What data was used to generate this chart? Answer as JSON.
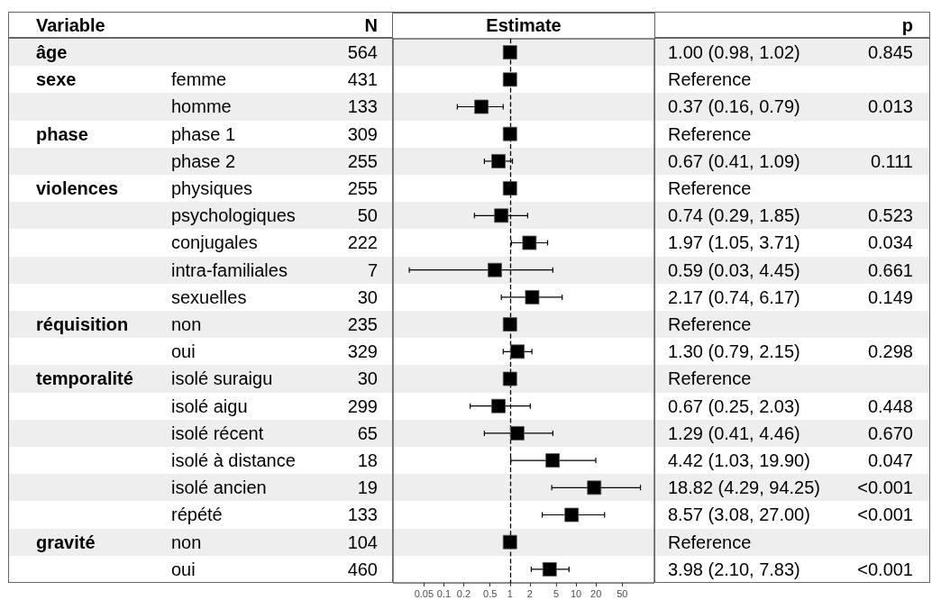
{
  "chart_data": [
    {
      "type": "other",
      "categories": [
        "Variable",
        null,
        "N"
      ],
      "cell_labels": [
        [
          "âge",
          null,
          "564"
        ],
        [
          "sexe",
          "femme",
          "431"
        ],
        [
          null,
          "homme",
          "133"
        ],
        [
          "phase",
          "phase 1",
          "309"
        ],
        [
          null,
          "phase 2",
          "255"
        ],
        [
          "violences",
          "physiques",
          "255"
        ],
        [
          null,
          "psychologiques",
          "50"
        ],
        [
          null,
          "conjugales",
          "222"
        ],
        [
          null,
          "intra-familiales",
          "7"
        ],
        [
          null,
          "sexuelles",
          "30"
        ],
        [
          "réquisition",
          "non",
          "235"
        ],
        [
          null,
          "oui",
          "329"
        ],
        [
          "temporalité",
          "isolé suraigu",
          "30"
        ],
        [
          null,
          "isolé aigu",
          "299"
        ],
        [
          null,
          "isolé récent",
          "65"
        ],
        [
          null,
          "isolé à distance",
          "18"
        ],
        [
          null,
          "isolé ancien",
          "19"
        ],
        [
          null,
          "répété",
          "133"
        ],
        [
          "gravité",
          "non",
          "104"
        ],
        [
          null,
          "oui",
          "460"
        ]
      ]
    },
    {
      "type": "scatter",
      "title": "Estimate",
      "orientation": "horizontal",
      "categories": [
        null,
        null,
        null,
        null,
        null,
        null,
        null,
        null,
        null,
        null,
        null,
        null,
        null,
        null,
        null,
        null,
        null,
        null,
        null,
        null
      ],
      "values": [
        1,
        1,
        0.37,
        1,
        0.67,
        1,
        0.74,
        1.97,
        0.59,
        2.17,
        1,
        1.3,
        1,
        0.67,
        1.29,
        4.42,
        18.82,
        8.57,
        1,
        3.98
      ],
      "errors": [
        [
          0.98,
          1.02
        ],
        null,
        [
          0.16,
          0.79
        ],
        null,
        [
          0.41,
          1.09
        ],
        null,
        [
          0.29,
          1.85
        ],
        [
          1.05,
          3.71
        ],
        [
          0.03,
          4.45
        ],
        [
          0.74,
          6.17
        ],
        null,
        [
          0.79,
          2.15
        ],
        null,
        [
          0.25,
          2.03
        ],
        [
          0.41,
          4.46
        ],
        [
          1.03,
          19.9
        ],
        [
          4.29,
          94.25
        ],
        [
          3.08,
          27
        ],
        null,
        [
          2.1,
          7.83
        ]
      ],
      "color": "#000000",
      "marker": "square",
      "log": "x",
      "xlim": [
        0.017,
        153
      ],
      "xticks": [
        0.05,
        0.1,
        0.2,
        0.5,
        1,
        2,
        5,
        10,
        20,
        50
      ],
      "tick_labels": "x",
      "grid": false,
      "ref_lines": [
        {
          "axis": "x",
          "value": 1,
          "color": "#000000",
          "line_style": "dashed"
        }
      ]
    },
    {
      "type": "other",
      "categories": [
        null,
        "p"
      ],
      "cell_labels": [
        [
          "1.00 (0.98, 1.02)",
          "0.845"
        ],
        [
          "Reference",
          null
        ],
        [
          "0.37 (0.16, 0.79)",
          "0.013"
        ],
        [
          "Reference",
          null
        ],
        [
          "0.67 (0.41, 1.09)",
          "0.111"
        ],
        [
          "Reference",
          null
        ],
        [
          "0.74 (0.29, 1.85)",
          "0.523"
        ],
        [
          "1.97 (1.05, 3.71)",
          "0.034"
        ],
        [
          "0.59 (0.03, 4.45)",
          "0.661"
        ],
        [
          "2.17 (0.74, 6.17)",
          "0.149"
        ],
        [
          "Reference",
          null
        ],
        [
          "1.30 (0.79, 2.15)",
          "0.298"
        ],
        [
          "Reference",
          null
        ],
        [
          "0.67 (0.25, 2.03)",
          "0.448"
        ],
        [
          "1.29 (0.41, 4.46)",
          "0.670"
        ],
        [
          "4.42 (1.03, 19.90)",
          "0.047"
        ],
        [
          "18.82 (4.29, 94.25)",
          "<0.001"
        ],
        [
          "8.57 (3.08, 27.00)",
          "<0.001"
        ],
        [
          "Reference",
          null
        ],
        [
          "3.98 (2.10, 7.83)",
          "<0.001"
        ]
      ]
    }
  ]
}
